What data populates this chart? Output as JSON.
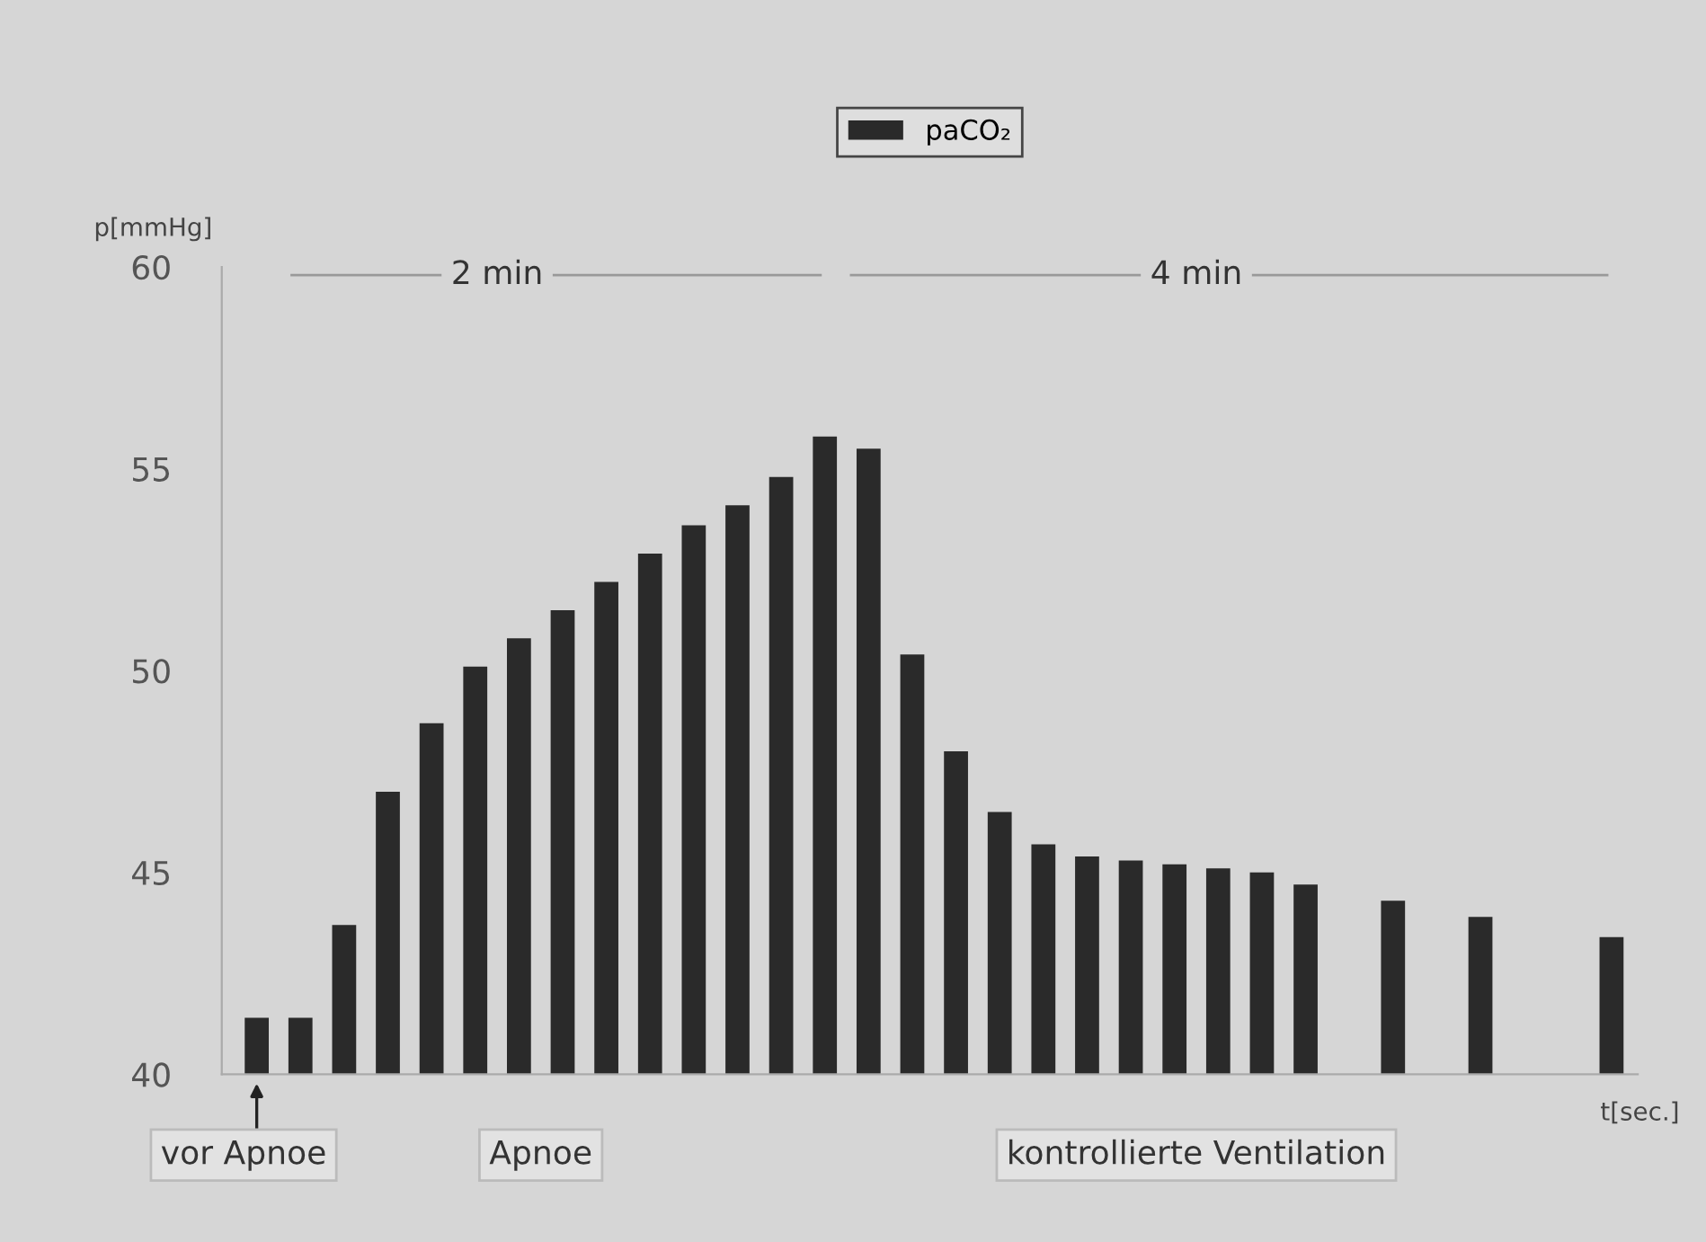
{
  "chart_data": {
    "type": "bar",
    "ylabel": "p[mmHg]",
    "xlabel": "t[sec.]",
    "categories": [
      null,
      null,
      null,
      null,
      null,
      null,
      null,
      null,
      null,
      null,
      null,
      null,
      null,
      null,
      null,
      null,
      null,
      null,
      null,
      null,
      null,
      null,
      null,
      null,
      null,
      null,
      null,
      null,
      null,
      null,
      null,
      null
    ],
    "series": [
      {
        "name": "paCO₂",
        "color": "#2a2a2a",
        "values": [
          41.4,
          41.4,
          43.7,
          47.0,
          48.7,
          50.1,
          50.8,
          51.5,
          52.2,
          52.9,
          53.6,
          54.1,
          54.8,
          55.8,
          55.5,
          50.4,
          48.0,
          46.5,
          45.7,
          45.4,
          45.3,
          45.2,
          45.1,
          45.0,
          44.7,
          null,
          44.3,
          null,
          43.9,
          null,
          null,
          43.4
        ]
      }
    ],
    "ylim": [
      40,
      60
    ],
    "yticks": [
      40,
      45,
      50,
      55,
      60
    ],
    "annotations": [
      "2 min",
      "4 min",
      "vor Apnoe",
      "Apnoe",
      "kontrollierte Ventilation"
    ],
    "legend": "top",
    "grid": false
  }
}
